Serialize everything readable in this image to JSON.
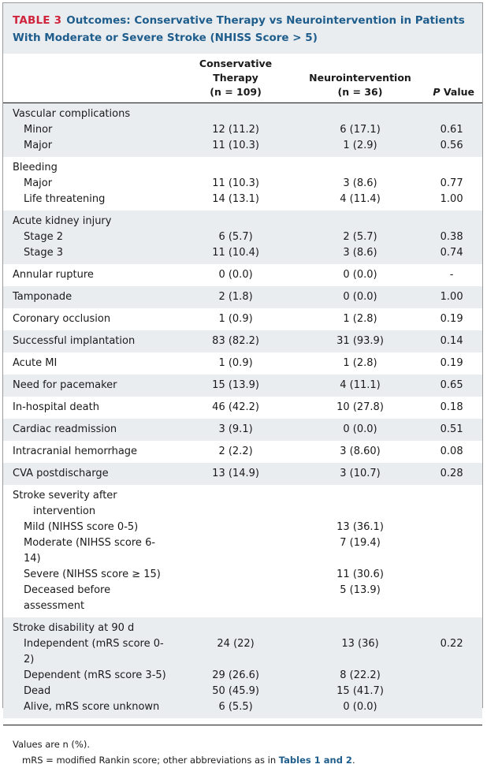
{
  "title": {
    "tag": "TABLE 3",
    "text": "Outcomes: Conservative Therapy vs Neurointervention in Patients With Moderate or Severe Stroke (NHISS Score > 5)"
  },
  "header": {
    "col1_line1": "Conservative",
    "col1_line2": "Therapy",
    "col1_line3": "(n = 109)",
    "col2_line1": "Neurointervention",
    "col2_line2": "(n = 36)",
    "col3_italic": "P",
    "col3_rest": " Value"
  },
  "groups": [
    {
      "shade": true,
      "rows": [
        {
          "label": "Vascular complications",
          "indent": 0,
          "a": "",
          "b": "",
          "p": ""
        },
        {
          "label": "Minor",
          "indent": 1,
          "a": "12 (11.2)",
          "b": "6 (17.1)",
          "p": "0.61"
        },
        {
          "label": "Major",
          "indent": 1,
          "a": "11 (10.3)",
          "b": "1 (2.9)",
          "p": "0.56"
        }
      ]
    },
    {
      "shade": false,
      "rows": [
        {
          "label": "Bleeding",
          "indent": 0,
          "a": "",
          "b": "",
          "p": ""
        },
        {
          "label": "Major",
          "indent": 1,
          "a": "11 (10.3)",
          "b": "3 (8.6)",
          "p": "0.77"
        },
        {
          "label": "Life threatening",
          "indent": 1,
          "a": "14 (13.1)",
          "b": "4 (11.4)",
          "p": "1.00"
        }
      ]
    },
    {
      "shade": true,
      "rows": [
        {
          "label": "Acute kidney injury",
          "indent": 0,
          "a": "",
          "b": "",
          "p": ""
        },
        {
          "label": "Stage 2",
          "indent": 1,
          "a": "6 (5.7)",
          "b": "2 (5.7)",
          "p": "0.38"
        },
        {
          "label": "Stage 3",
          "indent": 1,
          "a": "11 (10.4)",
          "b": "3 (8.6)",
          "p": "0.74"
        }
      ]
    },
    {
      "shade": false,
      "rows": [
        {
          "label": "Annular rupture",
          "indent": 0,
          "a": "0 (0.0)",
          "b": "0 (0.0)",
          "p": "-"
        }
      ]
    },
    {
      "shade": true,
      "rows": [
        {
          "label": "Tamponade",
          "indent": 0,
          "a": "2 (1.8)",
          "b": "0 (0.0)",
          "p": "1.00"
        }
      ]
    },
    {
      "shade": false,
      "rows": [
        {
          "label": "Coronary occlusion",
          "indent": 0,
          "a": "1 (0.9)",
          "b": "1 (2.8)",
          "p": "0.19"
        }
      ]
    },
    {
      "shade": true,
      "rows": [
        {
          "label": "Successful implantation",
          "indent": 0,
          "a": "83 (82.2)",
          "b": "31 (93.9)",
          "p": "0.14"
        }
      ]
    },
    {
      "shade": false,
      "rows": [
        {
          "label": "Acute MI",
          "indent": 0,
          "a": "1 (0.9)",
          "b": "1 (2.8)",
          "p": "0.19"
        }
      ]
    },
    {
      "shade": true,
      "rows": [
        {
          "label": "Need for pacemaker",
          "indent": 0,
          "a": "15 (13.9)",
          "b": "4 (11.1)",
          "p": "0.65"
        }
      ]
    },
    {
      "shade": false,
      "rows": [
        {
          "label": "In-hospital death",
          "indent": 0,
          "a": "46 (42.2)",
          "b": "10 (27.8)",
          "p": "0.18"
        }
      ]
    },
    {
      "shade": true,
      "rows": [
        {
          "label": "Cardiac readmission",
          "indent": 0,
          "a": "3 (9.1)",
          "b": "0 (0.0)",
          "p": "0.51"
        }
      ]
    },
    {
      "shade": false,
      "rows": [
        {
          "label": "Intracranial hemorrhage",
          "indent": 0,
          "a": "2 (2.2)",
          "b": "3 (8.60)",
          "p": "0.08"
        }
      ]
    },
    {
      "shade": true,
      "rows": [
        {
          "label": "CVA postdischarge",
          "indent": 0,
          "a": "13 (14.9)",
          "b": "3 (10.7)",
          "p": "0.28"
        }
      ]
    },
    {
      "shade": false,
      "rows": [
        {
          "label": "Stroke severity after",
          "indent": 0,
          "a": "",
          "b": "",
          "p": ""
        },
        {
          "label": "intervention",
          "indent": 2,
          "a": "",
          "b": "",
          "p": ""
        },
        {
          "label": "Mild (NIHSS score 0-5)",
          "indent": 1,
          "a": "",
          "b": "13 (36.1)",
          "p": ""
        },
        {
          "label": "Moderate (NIHSS score 6-14)",
          "indent": 1,
          "a": "",
          "b": "7 (19.4)",
          "p": ""
        },
        {
          "label": "Severe (NIHSS score ≥ 15)",
          "indent": 1,
          "a": "",
          "b": "11 (30.6)",
          "p": ""
        },
        {
          "label": "Deceased before assessment",
          "indent": 1,
          "a": "",
          "b": "5 (13.9)",
          "p": ""
        }
      ]
    },
    {
      "shade": true,
      "rows": [
        {
          "label": "Stroke disability at 90 d",
          "indent": 0,
          "a": "",
          "b": "",
          "p": ""
        },
        {
          "label": "Independent (mRS score 0-2)",
          "indent": 1,
          "a": "24 (22)",
          "b": "13 (36)",
          "p": "0.22"
        },
        {
          "label": "Dependent (mRS score 3-5)",
          "indent": 1,
          "a": "29 (26.6)",
          "b": "8 (22.2)",
          "p": ""
        },
        {
          "label": "Dead",
          "indent": 1,
          "a": "50 (45.9)",
          "b": "15 (41.7)",
          "p": ""
        },
        {
          "label": "Alive, mRS score unknown",
          "indent": 1,
          "a": "6 (5.5)",
          "b": "0 (0.0)",
          "p": ""
        }
      ]
    }
  ],
  "footer": {
    "line1": "Values are n (%).",
    "line2_prefix": "mRS = modified Rankin score; other abbreviations as in ",
    "line2_link": "Tables 1 and 2",
    "line2_suffix": "."
  }
}
